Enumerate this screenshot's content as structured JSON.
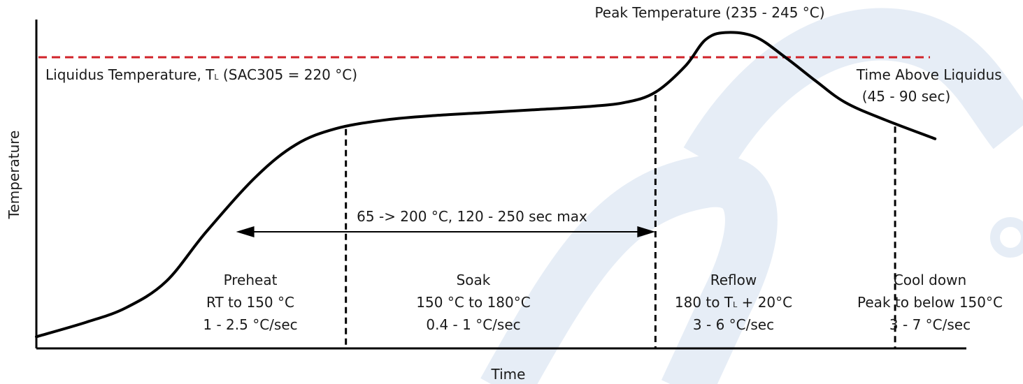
{
  "chart_data": {
    "type": "line",
    "title": "",
    "xlabel": "Time",
    "ylabel": "Temperature",
    "x_ticks": "none",
    "y_ticks": "none",
    "grid": false,
    "series": [
      {
        "values": [
          [
            0.0,
            0.04
          ],
          [
            0.05,
            0.09
          ],
          [
            0.09,
            0.14
          ],
          [
            0.13,
            0.23
          ],
          [
            0.17,
            0.4
          ],
          [
            0.22,
            0.59
          ],
          [
            0.26,
            0.7
          ],
          [
            0.3,
            0.755
          ],
          [
            0.35,
            0.785
          ],
          [
            0.4,
            0.8
          ],
          [
            0.45,
            0.81
          ],
          [
            0.5,
            0.82
          ],
          [
            0.55,
            0.83
          ],
          [
            0.59,
            0.845
          ],
          [
            0.62,
            0.88
          ],
          [
            0.65,
            0.97
          ],
          [
            0.67,
            1.06
          ],
          [
            0.69,
            1.085
          ],
          [
            0.72,
            1.07
          ],
          [
            0.75,
            1.0
          ],
          [
            0.78,
            0.92
          ],
          [
            0.81,
            0.845
          ],
          [
            0.85,
            0.785
          ],
          [
            0.9,
            0.72
          ]
        ],
        "units": "normalized (0-1 of axis range)"
      }
    ],
    "reference_lines": [
      {
        "orientation": "horizontal",
        "level": 1.0,
        "style": "dashed",
        "color": "#d0232a",
        "label_main": "Liquidus Temperature, T",
        "label_sub": "L",
        "label_tail": " (SAC305 = 220 °C)"
      }
    ],
    "phase_boundaries": [
      0.31,
      0.62,
      0.86
    ],
    "annotations": {
      "peak": "Peak Temperature (235 - 245 °C)",
      "time_above_liquidus": [
        "Time Above Liquidus",
        "(45 - 90 sec)"
      ],
      "span": {
        "label": "65 -> 200 °C, 120 - 250 sec max",
        "from": 0.2,
        "to": 0.62
      }
    },
    "phases": [
      {
        "name": "Preheat",
        "lines": [
          {
            "text": "RT to 150 °C"
          },
          {
            "text": "1 - 2.5 °C/sec"
          }
        ]
      },
      {
        "name": "Soak",
        "lines": [
          {
            "text": "150 °C to 180°C"
          },
          {
            "text": "0.4 - 1 °C/sec"
          }
        ]
      },
      {
        "name": "Reflow",
        "lines": [
          {
            "main": "180 to T",
            "sub": "L",
            "tail": " + 20°C"
          },
          {
            "text": "3 - 6 °C/sec"
          }
        ]
      },
      {
        "name": "Cool down",
        "lines": [
          {
            "text": "Peak to below  150°C"
          },
          {
            "text": "3 - 7 °C/sec"
          }
        ]
      }
    ],
    "colors": {
      "curve": "#000000",
      "liquidus": "#d0232a",
      "axis": "#000000",
      "watermark": "#e6edf6"
    }
  }
}
